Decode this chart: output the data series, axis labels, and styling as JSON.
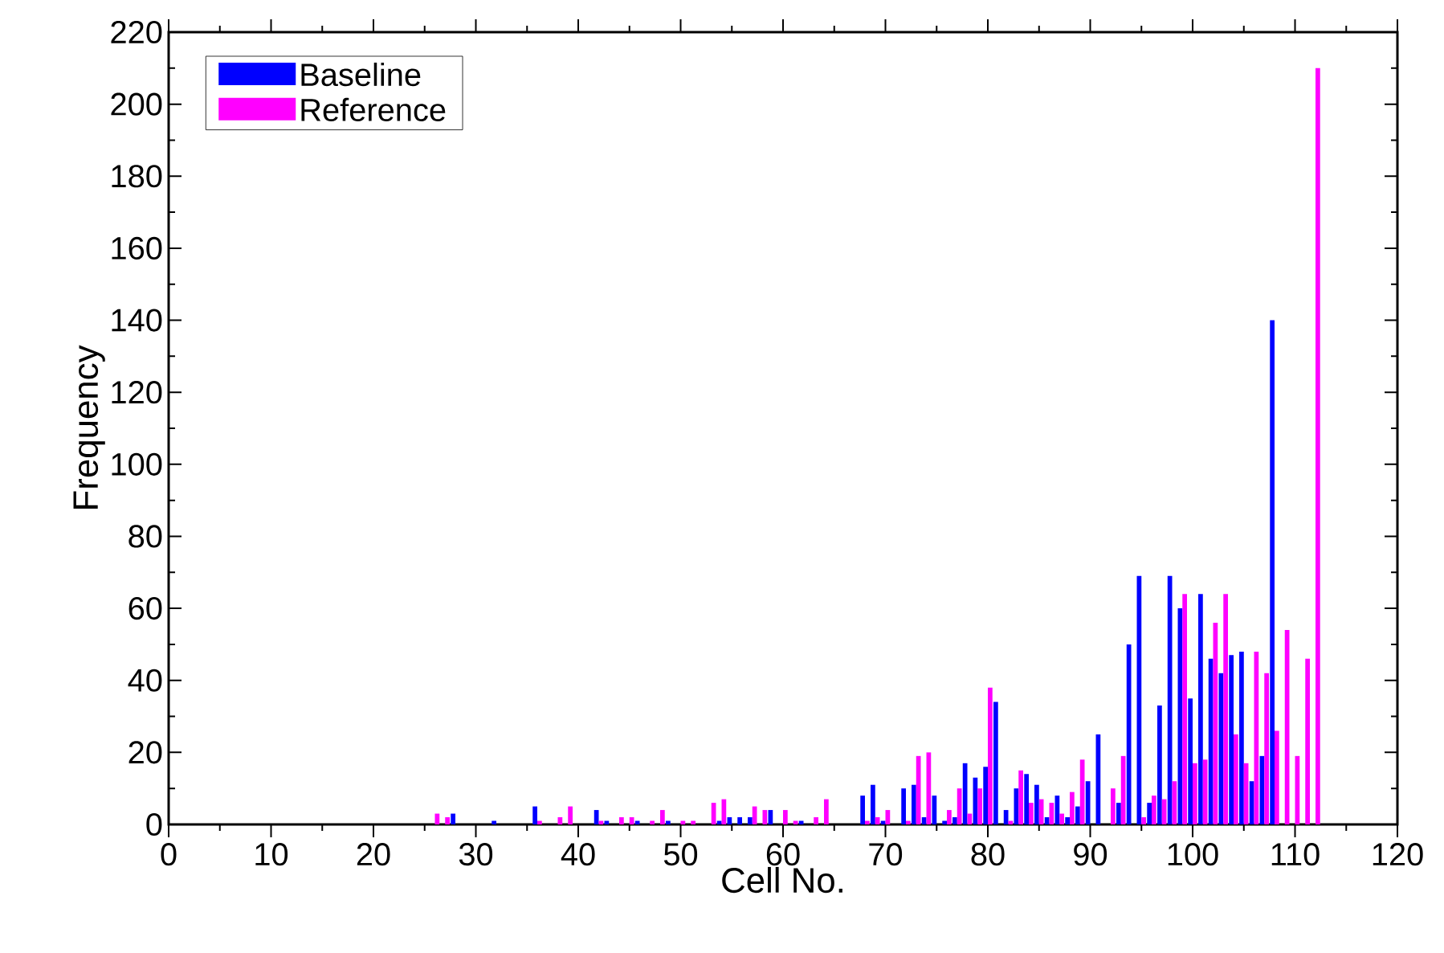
{
  "chart_data": {
    "type": "bar",
    "xlabel": "Cell No.",
    "ylabel": "Frequency",
    "x": [
      0,
      1,
      2,
      3,
      4,
      5,
      6,
      7,
      8,
      9,
      10,
      11,
      12,
      13,
      14,
      15,
      16,
      17,
      18,
      19,
      20,
      21,
      22,
      23,
      24,
      25,
      26,
      27,
      28,
      29,
      30,
      31,
      32,
      33,
      34,
      35,
      36,
      37,
      38,
      39,
      40,
      41,
      42,
      43,
      44,
      45,
      46,
      47,
      48,
      49,
      50,
      51,
      52,
      53,
      54,
      55,
      56,
      57,
      58,
      59,
      60,
      61,
      62,
      63,
      64,
      65,
      66,
      67,
      68,
      69,
      70,
      71,
      72,
      73,
      74,
      75,
      76,
      77,
      78,
      79,
      80,
      81,
      82,
      83,
      84,
      85,
      86,
      87,
      88,
      89,
      90,
      91,
      92,
      93,
      94,
      95,
      96,
      97,
      98,
      99,
      100,
      101,
      102,
      103,
      104,
      105,
      106,
      107,
      108,
      109,
      110,
      111,
      112,
      113,
      114,
      115,
      116,
      117,
      118,
      119,
      120
    ],
    "series": [
      {
        "name": "Baseline",
        "color": "#0000ff",
        "values": [
          0,
          0,
          0,
          0,
          0,
          0,
          0,
          0,
          0,
          0,
          0,
          0,
          0,
          0,
          0,
          0,
          0,
          0,
          0,
          0,
          0,
          0,
          0,
          0,
          0,
          0,
          0,
          0,
          3,
          0,
          0,
          0,
          1,
          0,
          0,
          0,
          5,
          0,
          0,
          0,
          0,
          0,
          4,
          1,
          0,
          0,
          1,
          0,
          0,
          1,
          0,
          0,
          0,
          0,
          1,
          2,
          2,
          2,
          0,
          4,
          0,
          0,
          1,
          0,
          0,
          0,
          0,
          0,
          8,
          11,
          1,
          0,
          10,
          11,
          2,
          8,
          1,
          2,
          17,
          13,
          16,
          34,
          4,
          10,
          14,
          11,
          2,
          8,
          2,
          5,
          12,
          25,
          0,
          6,
          50,
          69,
          6,
          33,
          69,
          60,
          35,
          64,
          46,
          42,
          47,
          48,
          12,
          19,
          140,
          0,
          0,
          0,
          0,
          0,
          0,
          0,
          0,
          0,
          0,
          0,
          0
        ]
      },
      {
        "name": "Reference",
        "color": "#ff00ff",
        "values": [
          0,
          0,
          0,
          0,
          0,
          0,
          0,
          0,
          0,
          0,
          0,
          0,
          0,
          0,
          0,
          0,
          0,
          0,
          0,
          0,
          0,
          0,
          0,
          0,
          0,
          0,
          3,
          2,
          0,
          0,
          0,
          0,
          0,
          0,
          0,
          0,
          1,
          0,
          2,
          5,
          0,
          0,
          1,
          0,
          2,
          2,
          0,
          1,
          4,
          0,
          1,
          1,
          0,
          6,
          7,
          0,
          0,
          5,
          4,
          0,
          4,
          1,
          0,
          2,
          7,
          0,
          0,
          0,
          1,
          2,
          4,
          0,
          1,
          19,
          20,
          0,
          4,
          10,
          3,
          10,
          38,
          0,
          1,
          15,
          6,
          7,
          6,
          3,
          9,
          18,
          0,
          0,
          10,
          19,
          0,
          2,
          8,
          7,
          12,
          64,
          17,
          18,
          56,
          64,
          25,
          17,
          48,
          42,
          26,
          54,
          19,
          46,
          210,
          0,
          0,
          0,
          0,
          0,
          0,
          0,
          0
        ]
      }
    ],
    "xlim": [
      0,
      120
    ],
    "ylim": [
      0,
      220
    ],
    "xticks": [
      0,
      10,
      20,
      30,
      40,
      50,
      60,
      70,
      80,
      90,
      100,
      110,
      120
    ],
    "yticks": [
      0,
      20,
      40,
      60,
      80,
      100,
      120,
      140,
      160,
      180,
      200,
      220
    ],
    "legend": "top left"
  }
}
